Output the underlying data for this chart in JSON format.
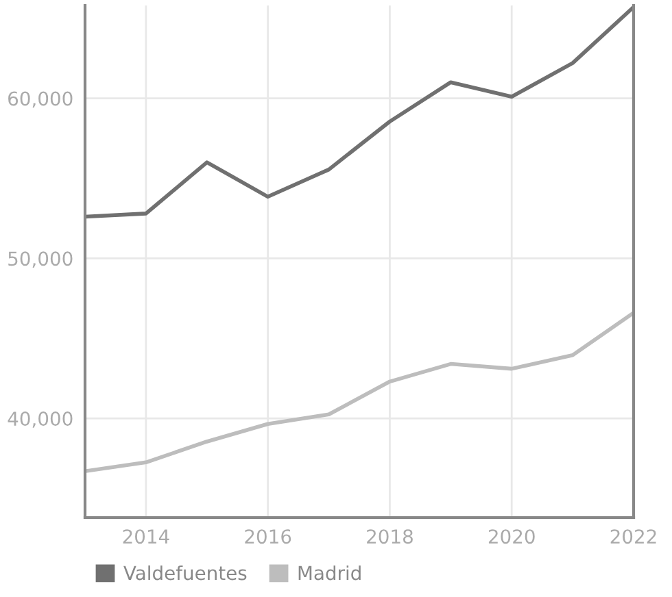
{
  "chart_data": {
    "type": "line",
    "x": [
      2013,
      2014,
      2015,
      2016,
      2017,
      2018,
      2019,
      2020,
      2021,
      2022
    ],
    "series": [
      {
        "name": "Valdefuentes",
        "color": "#707070",
        "values": [
          52600,
          52800,
          56000,
          53850,
          55550,
          58550,
          61000,
          60100,
          62200,
          65700
        ]
      },
      {
        "name": "Madrid",
        "color": "#bdbdbd",
        "values": [
          36700,
          37250,
          38550,
          39650,
          40250,
          42300,
          43400,
          43100,
          43950,
          46600
        ]
      }
    ],
    "xlim": [
      2013,
      2022
    ],
    "xticks": [
      2014,
      2016,
      2018,
      2020,
      2022
    ],
    "ylim": [
      33800,
      65800
    ],
    "yticks": [
      {
        "value": 40000,
        "label": "40,000"
      },
      {
        "value": 50000,
        "label": "50,000"
      },
      {
        "value": 60000,
        "label": "60,000"
      }
    ],
    "grid": true,
    "legend": "bottom left",
    "marker": "none",
    "line_style": "solid"
  }
}
